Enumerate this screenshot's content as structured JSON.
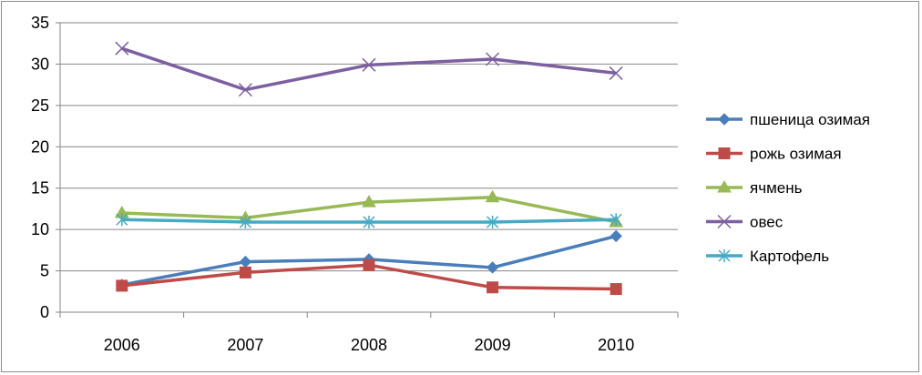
{
  "chart_data": {
    "type": "line",
    "categories": [
      "2006",
      "2007",
      "2008",
      "2009",
      "2010"
    ],
    "ylim": [
      0,
      35
    ],
    "yticks": [
      0,
      5,
      10,
      15,
      20,
      25,
      30,
      35
    ],
    "grid": "horizontal",
    "legend_position": "right",
    "series": [
      {
        "name": "пшеница озимая",
        "color": "#4a7ebb",
        "marker": "diamond",
        "values": [
          3.3,
          6.1,
          6.4,
          5.4,
          9.2
        ]
      },
      {
        "name": "рожь озимая",
        "color": "#be4b48",
        "marker": "square",
        "values": [
          3.2,
          4.8,
          5.7,
          3.0,
          2.8
        ]
      },
      {
        "name": "ячмень",
        "color": "#98b954",
        "marker": "triangle",
        "values": [
          12.0,
          11.4,
          13.3,
          13.9,
          10.9
        ]
      },
      {
        "name": "овес",
        "color": "#7d60a0",
        "marker": "x",
        "values": [
          31.9,
          26.9,
          29.9,
          30.6,
          28.9
        ]
      },
      {
        "name": "Картофель",
        "color": "#46aac5",
        "marker": "star",
        "values": [
          11.2,
          10.9,
          10.9,
          10.9,
          11.2
        ]
      }
    ]
  }
}
